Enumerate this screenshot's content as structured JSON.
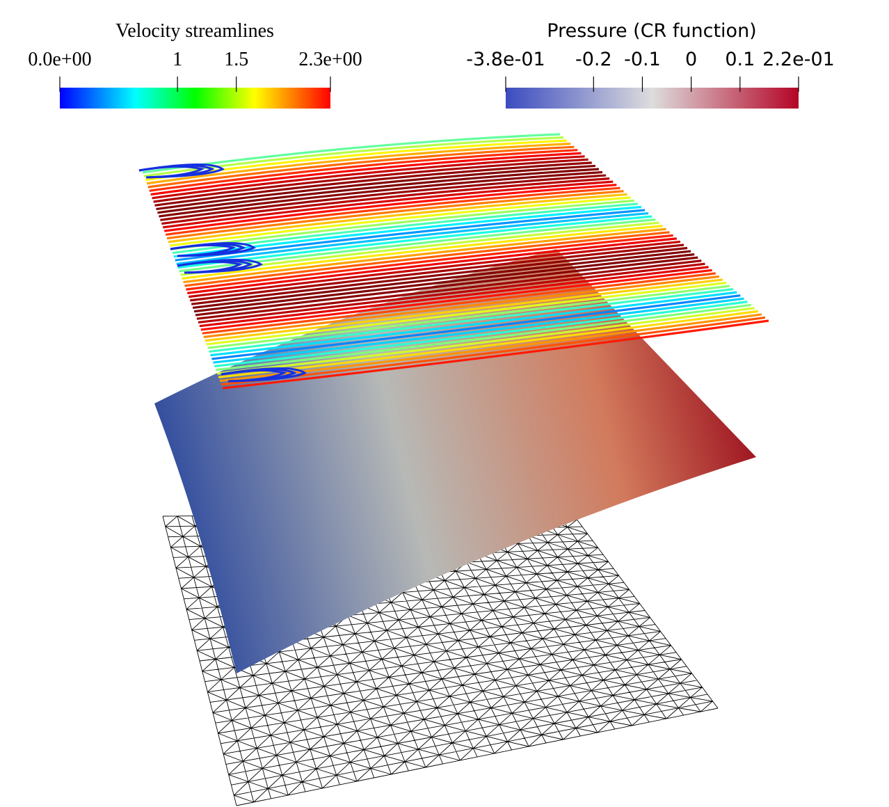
{
  "colorbars": [
    {
      "title": "Velocity streamlines",
      "range": [
        0,
        2.3
      ],
      "ticks": [
        {
          "value": 0,
          "label": "0.0e+00"
        },
        1,
        1.5,
        {
          "value": 2.3,
          "label": "2.3e+00"
        }
      ]
    },
    {
      "title": "Pressure (CR function)",
      "range": [
        -0.38,
        0.22
      ],
      "ticks": [
        {
          "value": -0.38,
          "label": "-3.8e-01"
        },
        -0.2,
        -0.1,
        0,
        0.1,
        {
          "value": 0.22,
          "label": "2.2e-01"
        }
      ]
    }
  ]
}
